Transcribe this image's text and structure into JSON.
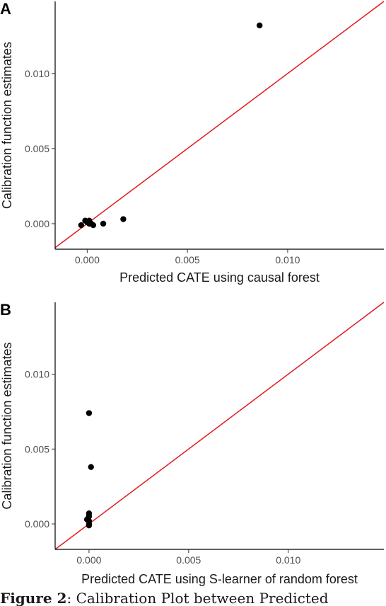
{
  "chart_data": [
    {
      "panel_label": "A",
      "type": "scatter",
      "xlabel": "Predicted CATE using causal forest",
      "ylabel": "Calibration function estimates",
      "xlim": [
        -0.0016,
        0.0148
      ],
      "ylim": [
        -0.0017,
        0.0148
      ],
      "xticks": [
        0.0,
        0.005,
        0.01
      ],
      "xtick_labels": [
        "0.000",
        "0.005",
        "0.010"
      ],
      "yticks": [
        0.0,
        0.005,
        0.01
      ],
      "ytick_labels": [
        "0.000",
        "0.005",
        "0.010"
      ],
      "reference_line": {
        "type": "identity",
        "color": "#e31a1c"
      },
      "grid": false,
      "points": [
        {
          "x": -0.0003,
          "y": -0.0001
        },
        {
          "x": -0.0001,
          "y": 0.0002
        },
        {
          "x": 0.0,
          "y": 0.0001
        },
        {
          "x": 0.0001,
          "y": 0.0
        },
        {
          "x": 0.0001,
          "y": 0.0002
        },
        {
          "x": 0.0002,
          "y": 0.0
        },
        {
          "x": 0.0003,
          "y": -0.0001
        },
        {
          "x": 0.0008,
          "y": 0.0
        },
        {
          "x": 0.0018,
          "y": 0.0003
        },
        {
          "x": 0.0086,
          "y": 0.0132
        }
      ]
    },
    {
      "panel_label": "B",
      "type": "scatter",
      "xlabel": "Predicted CATE using S-learner of random forest",
      "ylabel": "Calibration function estimates",
      "xlim": [
        -0.0017,
        0.0148
      ],
      "ylim": [
        -0.0017,
        0.0148
      ],
      "xticks": [
        0.0,
        0.005,
        0.01
      ],
      "xtick_labels": [
        "0.000",
        "0.005",
        "0.010"
      ],
      "yticks": [
        0.0,
        0.005,
        0.01
      ],
      "ytick_labels": [
        "0.000",
        "0.005",
        "0.010"
      ],
      "reference_line": {
        "type": "identity",
        "color": "#e31a1c"
      },
      "grid": false,
      "points": [
        {
          "x": 0.0,
          "y": 0.0074
        },
        {
          "x": 0.0001,
          "y": 0.0038
        },
        {
          "x": 0.0,
          "y": 0.0007
        },
        {
          "x": 0.0,
          "y": 0.0005
        },
        {
          "x": -0.0001,
          "y": 0.0003
        },
        {
          "x": 0.0,
          "y": 0.0002
        },
        {
          "x": 0.0,
          "y": 0.0
        },
        {
          "x": 0.0,
          "y": -0.0001
        }
      ]
    }
  ],
  "caption": {
    "bold": "Figure 2",
    "text": ": Calibration Plot between Predicted"
  }
}
